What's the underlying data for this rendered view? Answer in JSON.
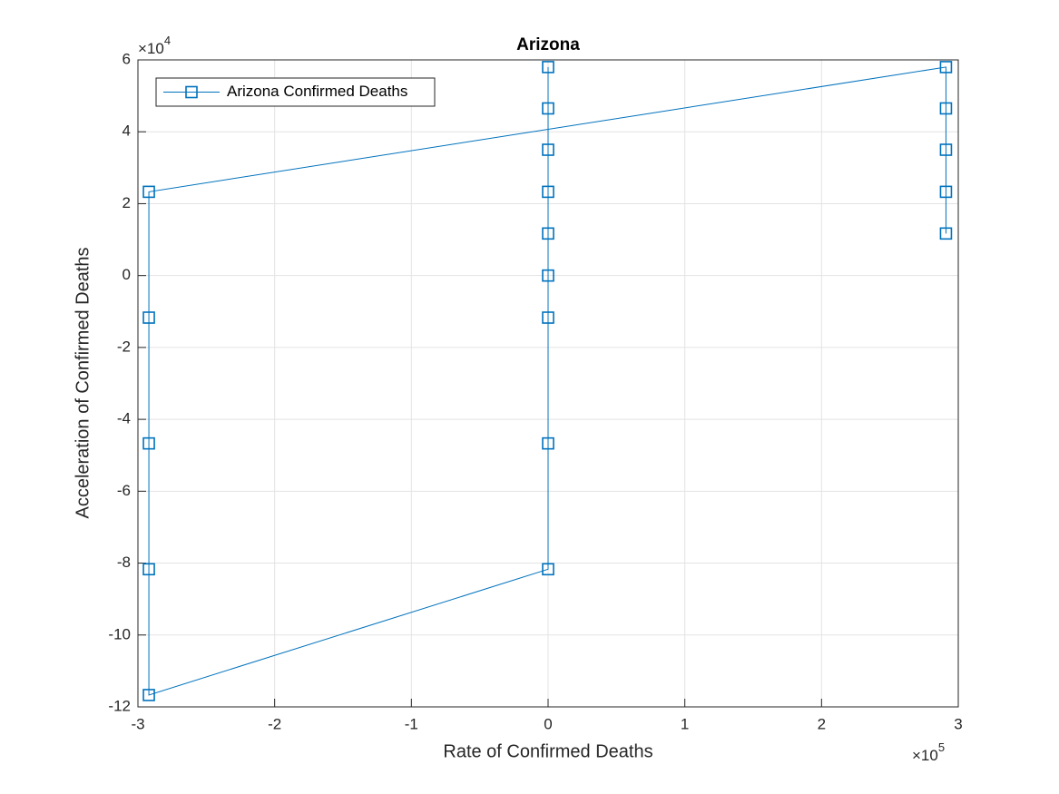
{
  "chart_data": {
    "type": "line",
    "title": "Arizona",
    "x_label": "Rate of Confirmed Deaths",
    "y_label": "Acceleration of Confirmed Deaths",
    "x_multiplier": {
      "base": "×10",
      "exponent": "5"
    },
    "y_multiplier": {
      "base": "×10",
      "exponent": "4"
    },
    "x": [
      2.91,
      2.91,
      2.91,
      2.91,
      2.91,
      -2.92,
      -2.92,
      -2.92,
      -2.92,
      -2.92,
      0,
      0,
      0,
      0,
      0,
      0,
      0,
      0,
      0
    ],
    "series": [
      {
        "name": "Arizona Confirmed Deaths",
        "color": "#0072bd",
        "values": [
          1.17,
          2.33,
          3.5,
          4.65,
          5.8,
          2.33,
          -1.17,
          -4.67,
          -8.17,
          -11.67,
          -8.17,
          -4.67,
          -1.17,
          0,
          1.17,
          2.33,
          3.5,
          4.65,
          5.8
        ]
      }
    ],
    "xlim": [
      -3,
      3
    ],
    "xticks": [
      -3,
      -2,
      -1,
      0,
      1,
      2,
      3
    ],
    "ylim": [
      -12,
      6
    ],
    "yticks": [
      -12,
      -10,
      -8,
      -6,
      -4,
      -2,
      0,
      2,
      4,
      6
    ],
    "grid": true,
    "legend": "upper left",
    "marker": "square"
  }
}
